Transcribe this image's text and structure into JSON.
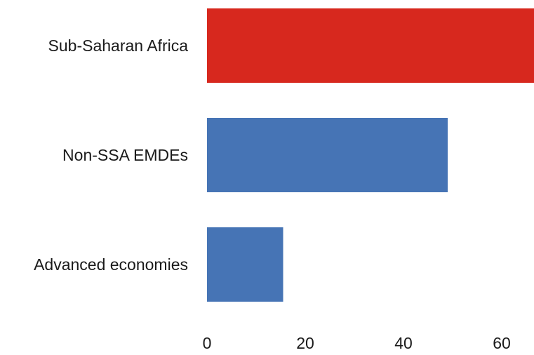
{
  "chart_data": {
    "type": "bar",
    "orientation": "horizontal",
    "categories": [
      "Sub-Saharan Africa",
      "Non-SSA EMDEs",
      "Advanced economies"
    ],
    "values": [
      67,
      49,
      15.5
    ],
    "colors": [
      "#d7281e",
      "#4674b5",
      "#4674b5"
    ],
    "x_ticks": [
      0,
      20,
      40,
      60
    ],
    "xlim": [
      0,
      67
    ],
    "grid": false,
    "legend": "none"
  }
}
